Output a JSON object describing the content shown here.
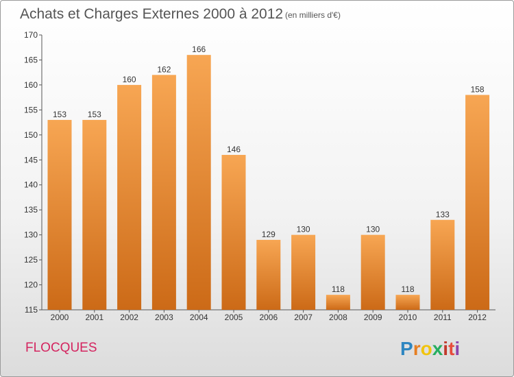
{
  "chart_data": {
    "type": "bar",
    "title": "Achats et Charges Externes 2000 à 2012",
    "subtitle": "(en milliers d'€)",
    "categories": [
      "2000",
      "2001",
      "2002",
      "2003",
      "2004",
      "2005",
      "2006",
      "2007",
      "2008",
      "2009",
      "2010",
      "2011",
      "2012"
    ],
    "values": [
      153,
      153,
      160,
      162,
      166,
      146,
      129,
      130,
      118,
      130,
      118,
      133,
      158
    ],
    "xlabel": "",
    "ylabel": "",
    "ylim": [
      115,
      170
    ],
    "yticks": [
      115,
      120,
      125,
      130,
      135,
      140,
      145,
      150,
      155,
      160,
      165,
      170
    ],
    "grid": false,
    "bar_color": "#e8862f"
  },
  "place_name": "FLOCQUES",
  "logo": {
    "letters": [
      "P",
      "r",
      "o",
      "x",
      "i",
      "t",
      "i"
    ],
    "colors": [
      "#2e86c1",
      "#e67e22",
      "#f1c40f",
      "#27ae60",
      "#c0392b",
      "#e74c3c",
      "#8e44ad"
    ]
  }
}
